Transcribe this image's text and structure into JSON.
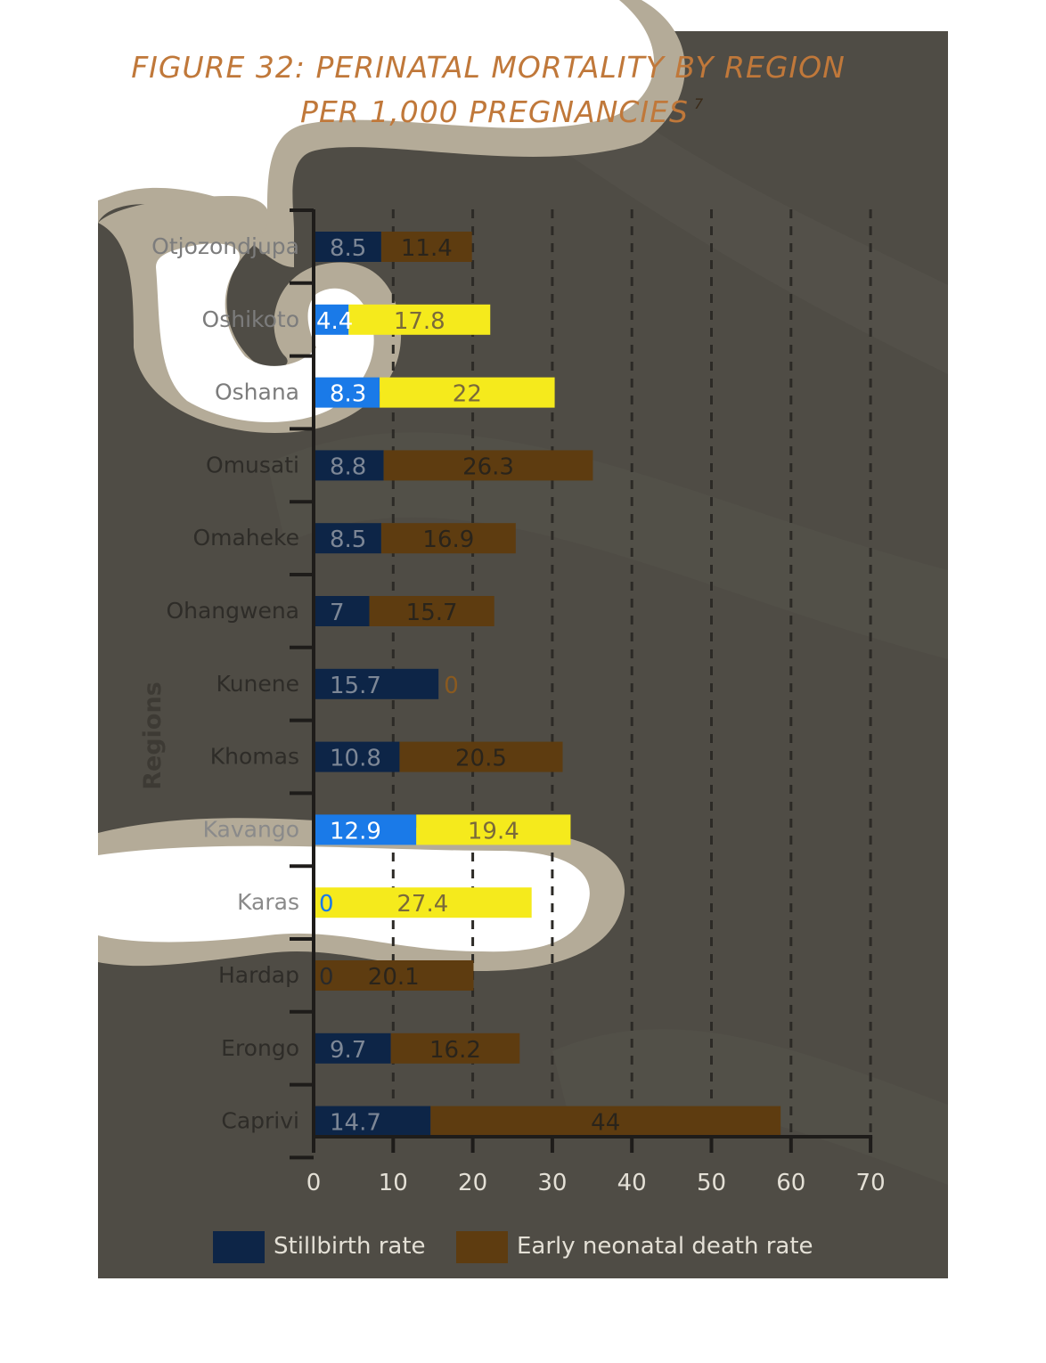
{
  "title": {
    "line1": "FIGURE 32: PERINATAL MORTALITY BY REGION",
    "line2": "PER 1,000 PREGNANCIES",
    "footnote": "7"
  },
  "colors": {
    "background": "#4f4c45",
    "stillbirth": "#0d2547",
    "neonatal": "#5e3c10",
    "stillbirth_highlight": "#1a7ae8",
    "neonatal_highlight": "#f5ea1c",
    "title": "#c0783a"
  },
  "chart_data": {
    "type": "bar",
    "orientation": "horizontal",
    "stacked": true,
    "ylabel": "Regions",
    "xlabel": "",
    "xlim": [
      0,
      70
    ],
    "xticks": [
      "0",
      "10",
      "20",
      "30",
      "40",
      "50",
      "60",
      "70"
    ],
    "grid": "vertical dashed",
    "legend_position": "bottom",
    "categories": [
      "Otjozondjupa",
      "Oshikoto",
      "Oshana",
      "Omusati",
      "Omaheke",
      "Ohangwena",
      "Kunene",
      "Khomas",
      "Kavango",
      "Karas",
      "Hardap",
      "Erongo",
      "Caprivi"
    ],
    "series": [
      {
        "name": "Stillbirth rate",
        "values": [
          8.5,
          4.4,
          8.3,
          8.8,
          8.5,
          7,
          15.7,
          10.8,
          12.9,
          0,
          0,
          9.7,
          14.7
        ],
        "labels": [
          "8.5",
          "4.4",
          "8.3",
          "8.8",
          "8.5",
          "7",
          "15.7",
          "10.8",
          "12.9",
          "0",
          "0",
          "9.7",
          "14.7"
        ]
      },
      {
        "name": "Early neonatal death rate",
        "values": [
          11.4,
          17.8,
          22,
          26.3,
          16.9,
          15.7,
          0,
          20.5,
          19.4,
          27.4,
          20.1,
          16.2,
          44
        ],
        "labels": [
          "11.4",
          "17.8",
          "22",
          "26.3",
          "16.9",
          "15.7",
          "0",
          "20.5",
          "19.4",
          "27.4",
          "20.1",
          "16.2",
          "44"
        ]
      }
    ]
  }
}
